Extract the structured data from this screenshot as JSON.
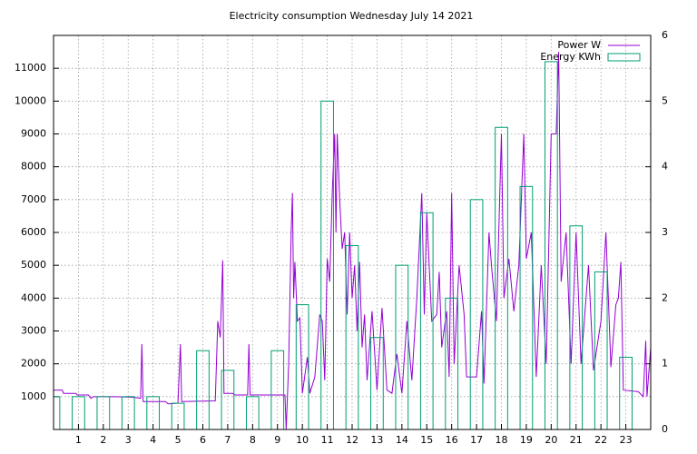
{
  "chart_data": {
    "type": "line+boxes",
    "title": "Electricity consumption Wednesday July 14 2021",
    "xlim": [
      0,
      24
    ],
    "xticks": [
      1,
      2,
      3,
      4,
      5,
      6,
      7,
      8,
      9,
      10,
      11,
      12,
      13,
      14,
      15,
      16,
      17,
      18,
      19,
      20,
      21,
      22,
      23
    ],
    "ylim": [
      0,
      12000
    ],
    "yticks": [
      1000,
      2000,
      3000,
      4000,
      5000,
      6000,
      7000,
      8000,
      9000,
      10000,
      11000
    ],
    "y2lim": [
      0,
      6
    ],
    "y2ticks": [
      0,
      1,
      2,
      3,
      4,
      5,
      6
    ],
    "grid": true,
    "legend": "top-right",
    "series": [
      {
        "name": "Power W",
        "color": "#9400d3",
        "x": [
          0,
          0.35,
          0.4,
          0.9,
          0.95,
          1.4,
          1.5,
          1.6,
          2.5,
          3.2,
          3.5,
          3.55,
          3.6,
          4.5,
          4.6,
          5,
          5.1,
          5.15,
          6.5,
          6.6,
          6.7,
          6.8,
          6.85,
          7.2,
          7.3,
          7.8,
          7.85,
          7.9,
          9.3,
          9.35,
          9.45,
          9.55,
          9.6,
          9.65,
          9.7,
          9.8,
          9.9,
          10,
          10.2,
          10.3,
          10.5,
          10.7,
          10.8,
          10.9,
          11,
          11.1,
          11.2,
          11.3,
          11.35,
          11.4,
          11.5,
          11.6,
          11.7,
          11.8,
          11.9,
          12,
          12.1,
          12.2,
          12.3,
          12.4,
          12.5,
          12.6,
          12.8,
          13,
          13.2,
          13.4,
          13.6,
          13.8,
          14,
          14.2,
          14.4,
          14.6,
          14.8,
          14.9,
          15,
          15.2,
          15.4,
          15.5,
          15.6,
          15.8,
          15.9,
          16,
          16.1,
          16.3,
          16.5,
          16.6,
          17,
          17.2,
          17.3,
          17.5,
          17.6,
          17.8,
          17.9,
          18,
          18.1,
          18.3,
          18.5,
          18.7,
          18.9,
          19,
          19.2,
          19.4,
          19.6,
          19.8,
          20,
          20.2,
          20.3,
          20.4,
          20.6,
          20.8,
          21,
          21.2,
          21.5,
          21.7,
          21.9,
          22,
          22.2,
          22.4,
          22.6,
          22.7,
          22.8,
          22.9,
          23.5,
          23.7,
          23.8,
          23.85,
          24
        ],
        "values": [
          1200,
          1200,
          1100,
          1100,
          1050,
          1050,
          950,
          1000,
          1000,
          980,
          950,
          2600,
          850,
          850,
          780,
          800,
          2600,
          850,
          870,
          3300,
          2800,
          5150,
          1100,
          1100,
          1050,
          1050,
          2600,
          1050,
          1050,
          0,
          2000,
          6000,
          7200,
          4000,
          5100,
          3300,
          3400,
          1100,
          2200,
          1100,
          1600,
          3500,
          3300,
          1500,
          5200,
          4500,
          7200,
          9000,
          6000,
          9000,
          7000,
          5500,
          6000,
          3500,
          6000,
          4000,
          5000,
          3000,
          5100,
          2500,
          3500,
          1500,
          3600,
          1200,
          3700,
          1200,
          1100,
          2300,
          1100,
          3300,
          1500,
          4000,
          7200,
          3500,
          6600,
          3300,
          3500,
          4800,
          2500,
          3600,
          1600,
          7200,
          2000,
          5000,
          3500,
          1600,
          1600,
          3600,
          1400,
          6000,
          5000,
          3300,
          6200,
          9000,
          4000,
          5200,
          3600,
          5000,
          9000,
          5200,
          6000,
          1600,
          5000,
          2000,
          9000,
          9000,
          11500,
          4500,
          6000,
          2000,
          6000,
          2000,
          5000,
          1800,
          2800,
          3300,
          6000,
          1900,
          3800,
          4000,
          5100,
          1200,
          1150,
          1000,
          2700,
          1000,
          2500
        ]
      },
      {
        "name": "Energy KWh",
        "color": "#009e73",
        "axis": "y2",
        "x": [
          0,
          1,
          2,
          3,
          4,
          5,
          6,
          7,
          8,
          9,
          10,
          11,
          12,
          13,
          14,
          15,
          16,
          17,
          18,
          19,
          20,
          21,
          22,
          23
        ],
        "values": [
          0.5,
          0.5,
          0.5,
          0.5,
          0.5,
          0.4,
          1.2,
          0.9,
          0.5,
          1.2,
          1.9,
          5.0,
          2.8,
          1.4,
          2.5,
          3.3,
          2.0,
          3.5,
          4.6,
          3.7,
          5.6,
          3.1,
          2.4,
          1.1
        ]
      }
    ]
  }
}
